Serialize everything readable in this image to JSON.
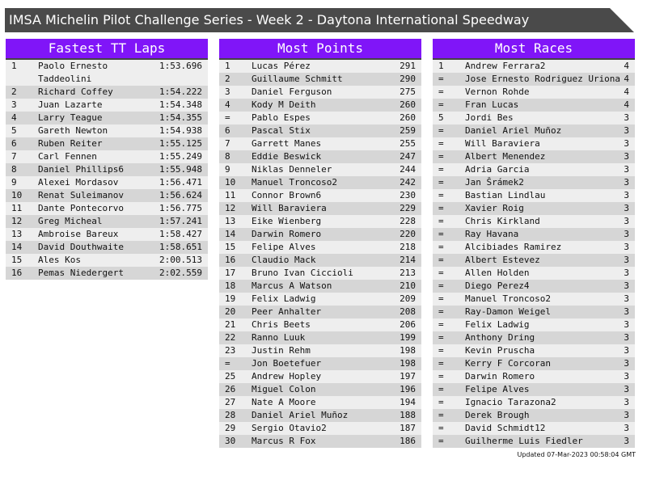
{
  "title": "IMSA Michelin Pilot Challenge Series - Week 2 - Daytona International Speedway",
  "colors": {
    "header": "#8015f8",
    "title_bar": "#4a4a4a",
    "row_light": "#eeeeee",
    "row_dark": "#d6d6d6"
  },
  "tables": [
    {
      "title": "Fastest TT Laps",
      "rows": [
        [
          "1",
          "Paolo Ernesto Taddeolini",
          "1:53.696"
        ],
        [
          "2",
          "Richard Coffey",
          "1:54.222"
        ],
        [
          "3",
          "Juan Lazarte",
          "1:54.348"
        ],
        [
          "4",
          "Larry Teague",
          "1:54.355"
        ],
        [
          "5",
          "Gareth Newton",
          "1:54.938"
        ],
        [
          "6",
          "Ruben Reiter",
          "1:55.125"
        ],
        [
          "7",
          "Carl Fennen",
          "1:55.249"
        ],
        [
          "8",
          "Daniel Phillips6",
          "1:55.948"
        ],
        [
          "9",
          "Alexei Mordasov",
          "1:56.471"
        ],
        [
          "10",
          "Renat Suleimanov",
          "1:56.624"
        ],
        [
          "11",
          "Dante Pontecorvo",
          "1:56.775"
        ],
        [
          "12",
          "Greg Micheal",
          "1:57.241"
        ],
        [
          "13",
          "Ambroise Bareux",
          "1:58.427"
        ],
        [
          "14",
          "David Douthwaite",
          "1:58.651"
        ],
        [
          "15",
          "Ales Kos",
          "2:00.513"
        ],
        [
          "16",
          "Pemas Niedergert",
          "2:02.559"
        ]
      ]
    },
    {
      "title": "Most Points",
      "rows": [
        [
          "1",
          "Lucas Pérez",
          "291"
        ],
        [
          "2",
          "Guillaume Schmitt",
          "290"
        ],
        [
          "3",
          "Daniel Ferguson",
          "275"
        ],
        [
          "4",
          "Kody M Deith",
          "260"
        ],
        [
          "=",
          "Pablo Espes",
          "260"
        ],
        [
          "6",
          "Pascal Stix",
          "259"
        ],
        [
          "7",
          "Garrett Manes",
          "255"
        ],
        [
          "8",
          "Eddie Beswick",
          "247"
        ],
        [
          "9",
          "Niklas Denneler",
          "244"
        ],
        [
          "10",
          "Manuel Troncoso2",
          "242"
        ],
        [
          "11",
          "Connor Brown6",
          "230"
        ],
        [
          "12",
          "Will Baraviera",
          "229"
        ],
        [
          "13",
          "Eike Wienberg",
          "228"
        ],
        [
          "14",
          "Darwin Romero",
          "220"
        ],
        [
          "15",
          "Felipe Alves",
          "218"
        ],
        [
          "16",
          "Claudio Mack",
          "214"
        ],
        [
          "17",
          "Bruno Ivan Ciccioli",
          "213"
        ],
        [
          "18",
          "Marcus A Watson",
          "210"
        ],
        [
          "19",
          "Felix Ladwig",
          "209"
        ],
        [
          "20",
          "Peer Anhalter",
          "208"
        ],
        [
          "21",
          "Chris Beets",
          "206"
        ],
        [
          "22",
          "Ranno Luuk",
          "199"
        ],
        [
          "23",
          "Justin Rehm",
          "198"
        ],
        [
          "=",
          "Jon Boetefuer",
          "198"
        ],
        [
          "25",
          "Andrew Hopley",
          "197"
        ],
        [
          "26",
          "Miguel Colon",
          "196"
        ],
        [
          "27",
          "Nate A Moore",
          "194"
        ],
        [
          "28",
          "Daniel Ariel Muñoz",
          "188"
        ],
        [
          "29",
          "Sergio Otavio2",
          "187"
        ],
        [
          "30",
          "Marcus R Fox",
          "186"
        ]
      ]
    },
    {
      "title": "Most Races",
      "rows": [
        [
          "1",
          "Andrew Ferrara2",
          "4"
        ],
        [
          "=",
          "Jose Ernesto Rodriguez Uriona",
          "4"
        ],
        [
          "=",
          "Vernon Rohde",
          "4"
        ],
        [
          "=",
          "Fran Lucas",
          "4"
        ],
        [
          "5",
          "Jordi Bes",
          "3"
        ],
        [
          "=",
          "Daniel Ariel Muñoz",
          "3"
        ],
        [
          "=",
          "Will Baraviera",
          "3"
        ],
        [
          "=",
          "Albert Menendez",
          "3"
        ],
        [
          "=",
          "Adria Garcia",
          "3"
        ],
        [
          "=",
          "Jan Šrámek2",
          "3"
        ],
        [
          "=",
          "Bastian Lindlau",
          "3"
        ],
        [
          "=",
          "Xavier Roig",
          "3"
        ],
        [
          "=",
          "Chris Kirkland",
          "3"
        ],
        [
          "=",
          "Ray Havana",
          "3"
        ],
        [
          "=",
          "Alcibiades Ramirez",
          "3"
        ],
        [
          "=",
          "Albert Estevez",
          "3"
        ],
        [
          "=",
          "Allen Holden",
          "3"
        ],
        [
          "=",
          "Diego Perez4",
          "3"
        ],
        [
          "=",
          "Manuel Troncoso2",
          "3"
        ],
        [
          "=",
          "Ray-Damon Weigel",
          "3"
        ],
        [
          "=",
          "Felix Ladwig",
          "3"
        ],
        [
          "=",
          "Anthony Dring",
          "3"
        ],
        [
          "=",
          "Kevin Pruscha",
          "3"
        ],
        [
          "=",
          "Kerry F Corcoran",
          "3"
        ],
        [
          "=",
          "Darwin Romero",
          "3"
        ],
        [
          "=",
          "Felipe Alves",
          "3"
        ],
        [
          "=",
          "Ignacio Tarazona2",
          "3"
        ],
        [
          "=",
          "Derek Brough",
          "3"
        ],
        [
          "=",
          "David Schmidt12",
          "3"
        ],
        [
          "=",
          "Guilherme Luis Fiedler",
          "3"
        ]
      ]
    }
  ],
  "footer": "Updated 07-Mar-2023 00:58:04 GMT"
}
